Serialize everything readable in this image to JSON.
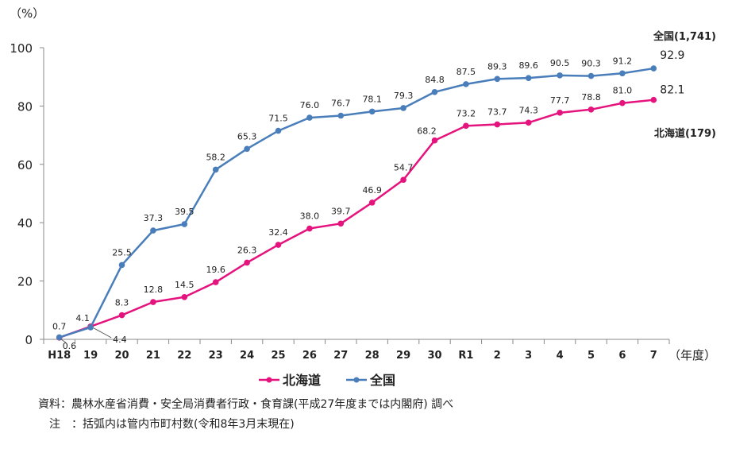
{
  "chart_data": {
    "type": "line",
    "y_unit_label": "（%）",
    "x_unit_label": "（年度）",
    "categories": [
      "H18",
      "19",
      "20",
      "21",
      "22",
      "23",
      "24",
      "25",
      "26",
      "27",
      "28",
      "29",
      "30",
      "R1",
      "2",
      "3",
      "4",
      "5",
      "6",
      "7"
    ],
    "ylim": [
      0,
      100
    ],
    "yticks": [
      0,
      20,
      40,
      60,
      80,
      100
    ],
    "grid": false,
    "legend_position": "bottom",
    "series": [
      {
        "name": "北海道",
        "color": "#E5137D",
        "values": [
          0.6,
          4.4,
          8.3,
          12.8,
          14.5,
          19.6,
          26.3,
          32.4,
          38.0,
          39.7,
          46.9,
          54.7,
          68.2,
          73.2,
          73.7,
          74.3,
          77.7,
          78.8,
          81.0,
          82.1
        ],
        "labels": [
          "0.6",
          "4.4",
          "8.3",
          "12.8",
          "14.5",
          "19.6",
          "26.3",
          "32.4",
          "38.0",
          "39.7",
          "46.9",
          "54.7",
          "68.2",
          "73.2",
          "73.7",
          "74.3",
          "77.7",
          "78.8",
          "81.0",
          "82.1"
        ],
        "end_annotation": "北海道(179)"
      },
      {
        "name": "全国",
        "color": "#4A7EBB",
        "values": [
          0.7,
          4.1,
          25.5,
          37.3,
          39.5,
          58.2,
          65.3,
          71.5,
          76.0,
          76.7,
          78.1,
          79.3,
          84.8,
          87.5,
          89.3,
          89.6,
          90.5,
          90.3,
          91.2,
          92.9
        ],
        "labels": [
          "0.7",
          "4.1",
          "25.5",
          "37.3",
          "39.5",
          "58.2",
          "65.3",
          "71.5",
          "76.0",
          "76.7",
          "78.1",
          "79.3",
          "84.8",
          "87.5",
          "89.3",
          "89.6",
          "90.5",
          "90.3",
          "91.2",
          "92.9"
        ],
        "end_annotation": "全国(1,741)"
      }
    ]
  },
  "notes": {
    "source": "資料：農林水産省消費・安全局消費者行政・食育課(平成27年度までは内閣府) 調べ",
    "remark": "　注　：括弧内は管内市町村数(令和8年3月末現在)"
  }
}
